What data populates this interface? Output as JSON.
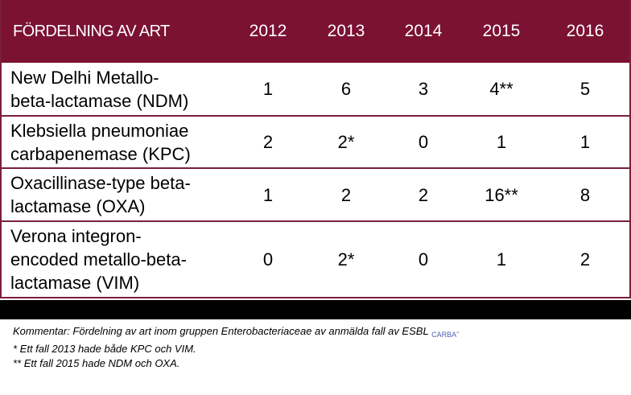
{
  "table": {
    "headers": [
      "FÖRDELNING AV ART",
      "2012",
      "2013",
      "2014",
      "2015",
      "2016"
    ],
    "rows": [
      {
        "name_line1": "New Delhi Metallo-",
        "name_line2": "beta-lactamase (NDM)",
        "name_line3": "",
        "values": [
          "1",
          "6",
          "3",
          "4**",
          "5"
        ]
      },
      {
        "name_line1": "Klebsiella pneumoniae",
        "name_line2": "carbapenemase (KPC)",
        "name_line3": "",
        "values": [
          "2",
          "2*",
          "0",
          "1",
          "1"
        ]
      },
      {
        "name_line1": "Oxacillinase-type beta-",
        "name_line2": "lactamase (OXA)",
        "name_line3": "",
        "values": [
          "1",
          "2",
          "2",
          "16**",
          "8"
        ]
      },
      {
        "name_line1": "Verona integron-",
        "name_line2": "encoded metallo-beta-",
        "name_line3": "lactamase (VIM)",
        "values": [
          "0",
          "2*",
          "0",
          "1",
          "2"
        ]
      }
    ]
  },
  "notes": {
    "comment": "Kommentar: Fördelning av art inom gruppen  Enterobacteriaceae av anmälda fall av ESBL",
    "comment_sub": "CARBA",
    "comment_tail": "-",
    "note1": "*   Ett fall 2013 hade både KPC och VIM.",
    "note2": "** Ett fall 2015 hade NDM och OXA."
  }
}
